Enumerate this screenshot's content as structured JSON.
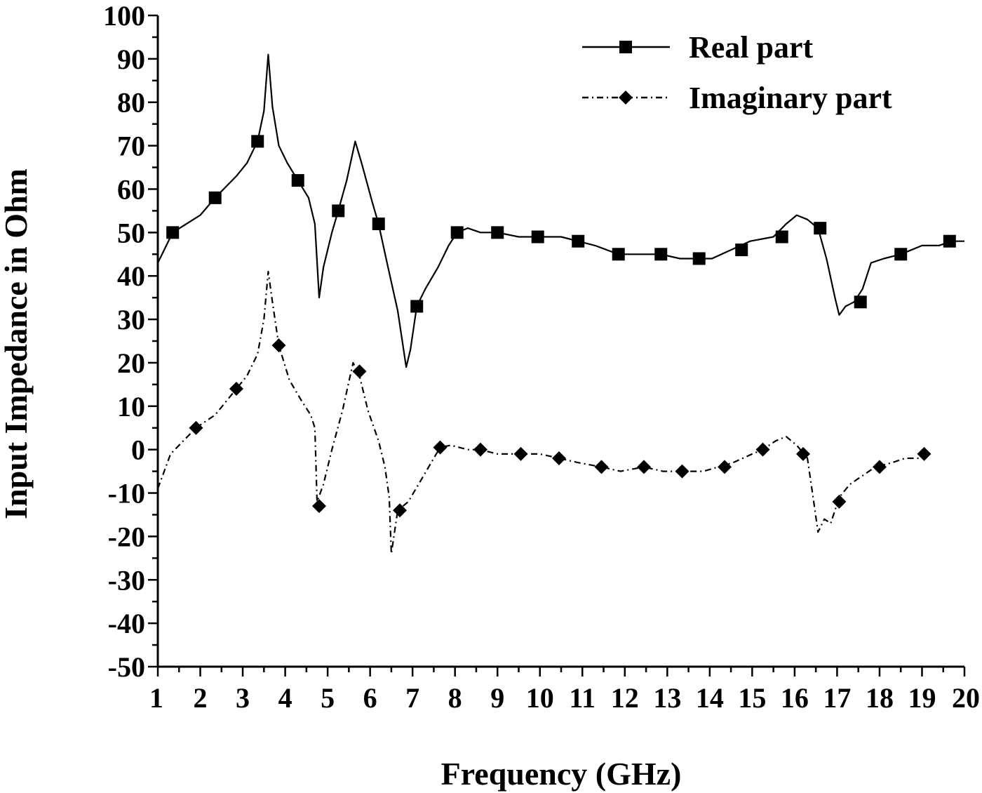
{
  "chart_data": {
    "type": "line",
    "xlabel": "Frequency (GHz)",
    "ylabel": "Input Impedance in Ohm",
    "xlim": [
      1,
      20
    ],
    "ylim": [
      -50,
      100
    ],
    "x_ticks": [
      "1",
      "2",
      "3",
      "4",
      "5",
      "6",
      "7",
      "8",
      "9",
      "10",
      "11",
      "12",
      "13",
      "14",
      "15",
      "16",
      "17",
      "18",
      "19",
      "20"
    ],
    "y_ticks": [
      "100",
      "90",
      "80",
      "70",
      "60",
      "50",
      "40",
      "30",
      "20",
      "10",
      "0",
      "-10",
      "-20",
      "-30",
      "-40",
      "-50"
    ],
    "legend_position": "top-right",
    "series": [
      {
        "name": "Real part",
        "line_style": "solid",
        "marker": "square",
        "color": "#000000",
        "curve": [
          [
            1.0,
            43
          ],
          [
            1.35,
            50
          ],
          [
            2.0,
            54
          ],
          [
            2.35,
            58
          ],
          [
            2.85,
            63
          ],
          [
            3.1,
            66
          ],
          [
            3.35,
            71
          ],
          [
            3.5,
            78
          ],
          [
            3.6,
            91
          ],
          [
            3.7,
            79
          ],
          [
            3.85,
            70
          ],
          [
            4.05,
            66
          ],
          [
            4.3,
            62
          ],
          [
            4.55,
            58
          ],
          [
            4.7,
            52
          ],
          [
            4.8,
            35
          ],
          [
            4.9,
            42
          ],
          [
            5.1,
            50
          ],
          [
            5.25,
            55
          ],
          [
            5.45,
            62
          ],
          [
            5.65,
            71
          ],
          [
            5.8,
            66
          ],
          [
            6.05,
            57
          ],
          [
            6.2,
            52
          ],
          [
            6.4,
            43
          ],
          [
            6.65,
            32
          ],
          [
            6.85,
            19
          ],
          [
            6.95,
            23
          ],
          [
            7.1,
            33
          ],
          [
            7.3,
            37
          ],
          [
            7.6,
            42
          ],
          [
            7.85,
            47
          ],
          [
            8.05,
            50
          ],
          [
            8.3,
            51
          ],
          [
            8.6,
            50
          ],
          [
            9.0,
            50
          ],
          [
            9.5,
            49
          ],
          [
            10.0,
            49
          ],
          [
            10.5,
            49
          ],
          [
            10.9,
            48
          ],
          [
            11.3,
            47
          ],
          [
            11.85,
            45
          ],
          [
            12.3,
            45
          ],
          [
            12.85,
            45
          ],
          [
            13.3,
            44
          ],
          [
            13.75,
            44
          ],
          [
            14.05,
            44
          ],
          [
            14.5,
            46
          ],
          [
            14.95,
            48
          ],
          [
            15.5,
            49
          ],
          [
            15.8,
            52
          ],
          [
            16.05,
            54
          ],
          [
            16.3,
            53
          ],
          [
            16.55,
            51
          ],
          [
            16.75,
            44
          ],
          [
            16.95,
            35
          ],
          [
            17.05,
            31
          ],
          [
            17.2,
            33
          ],
          [
            17.4,
            34
          ],
          [
            17.6,
            37
          ],
          [
            17.8,
            43
          ],
          [
            18.1,
            44
          ],
          [
            18.5,
            45
          ],
          [
            19.0,
            47
          ],
          [
            19.4,
            47
          ],
          [
            19.7,
            48
          ],
          [
            20.0,
            48
          ]
        ],
        "markers": [
          [
            1.35,
            50
          ],
          [
            2.35,
            58
          ],
          [
            3.35,
            71
          ],
          [
            4.3,
            62
          ],
          [
            5.25,
            55
          ],
          [
            6.2,
            52
          ],
          [
            7.1,
            33
          ],
          [
            8.05,
            50
          ],
          [
            9.0,
            50
          ],
          [
            9.95,
            49
          ],
          [
            10.9,
            48
          ],
          [
            11.85,
            45
          ],
          [
            12.85,
            45
          ],
          [
            13.75,
            44
          ],
          [
            14.75,
            46
          ],
          [
            15.7,
            49
          ],
          [
            16.6,
            51
          ],
          [
            17.55,
            34
          ],
          [
            18.5,
            45
          ],
          [
            19.65,
            48
          ]
        ]
      },
      {
        "name": "Imaginary part",
        "line_style": "dash-dot",
        "marker": "diamond",
        "color": "#000000",
        "curve": [
          [
            1.0,
            -9
          ],
          [
            1.3,
            -1
          ],
          [
            1.6,
            2
          ],
          [
            1.9,
            5
          ],
          [
            2.35,
            8
          ],
          [
            2.85,
            14
          ],
          [
            3.1,
            17
          ],
          [
            3.35,
            22
          ],
          [
            3.5,
            30
          ],
          [
            3.6,
            41
          ],
          [
            3.7,
            34
          ],
          [
            3.85,
            24
          ],
          [
            4.1,
            16
          ],
          [
            4.4,
            11
          ],
          [
            4.6,
            8
          ],
          [
            4.7,
            5
          ],
          [
            4.75,
            -12
          ],
          [
            4.9,
            -8
          ],
          [
            5.1,
            0
          ],
          [
            5.35,
            9
          ],
          [
            5.6,
            20
          ],
          [
            5.75,
            17
          ],
          [
            5.95,
            9
          ],
          [
            6.2,
            2
          ],
          [
            6.35,
            -4
          ],
          [
            6.45,
            -11
          ],
          [
            6.5,
            -24
          ],
          [
            6.65,
            -14
          ],
          [
            6.9,
            -12
          ],
          [
            7.2,
            -7
          ],
          [
            7.5,
            -2
          ],
          [
            7.65,
            0.5
          ],
          [
            7.9,
            1
          ],
          [
            8.3,
            0
          ],
          [
            8.6,
            0
          ],
          [
            9.0,
            -1
          ],
          [
            9.55,
            -1
          ],
          [
            10.0,
            -1
          ],
          [
            10.45,
            -2
          ],
          [
            10.9,
            -3
          ],
          [
            11.45,
            -4
          ],
          [
            11.9,
            -5
          ],
          [
            12.45,
            -4
          ],
          [
            12.9,
            -5
          ],
          [
            13.35,
            -5
          ],
          [
            13.85,
            -5
          ],
          [
            14.2,
            -4
          ],
          [
            14.55,
            -3
          ],
          [
            15.0,
            -1
          ],
          [
            15.25,
            0
          ],
          [
            15.55,
            2
          ],
          [
            15.8,
            3
          ],
          [
            16.05,
            1
          ],
          [
            16.3,
            -2
          ],
          [
            16.45,
            -12
          ],
          [
            16.55,
            -19
          ],
          [
            16.7,
            -16
          ],
          [
            16.85,
            -17
          ],
          [
            17.05,
            -11
          ],
          [
            17.3,
            -8
          ],
          [
            17.6,
            -6
          ],
          [
            17.9,
            -4
          ],
          [
            18.3,
            -3
          ],
          [
            18.6,
            -2
          ],
          [
            19.05,
            -2
          ]
        ],
        "markers": [
          [
            1.9,
            5
          ],
          [
            2.85,
            14
          ],
          [
            3.85,
            24
          ],
          [
            4.8,
            -13
          ],
          [
            5.75,
            18
          ],
          [
            6.7,
            -14
          ],
          [
            7.65,
            0.5
          ],
          [
            8.6,
            0
          ],
          [
            9.55,
            -1
          ],
          [
            10.45,
            -2
          ],
          [
            11.45,
            -4
          ],
          [
            12.45,
            -4
          ],
          [
            13.35,
            -5
          ],
          [
            14.35,
            -4
          ],
          [
            15.25,
            0
          ],
          [
            16.2,
            -1
          ],
          [
            17.05,
            -12
          ],
          [
            18.0,
            -4
          ],
          [
            19.05,
            -1
          ]
        ]
      }
    ]
  }
}
